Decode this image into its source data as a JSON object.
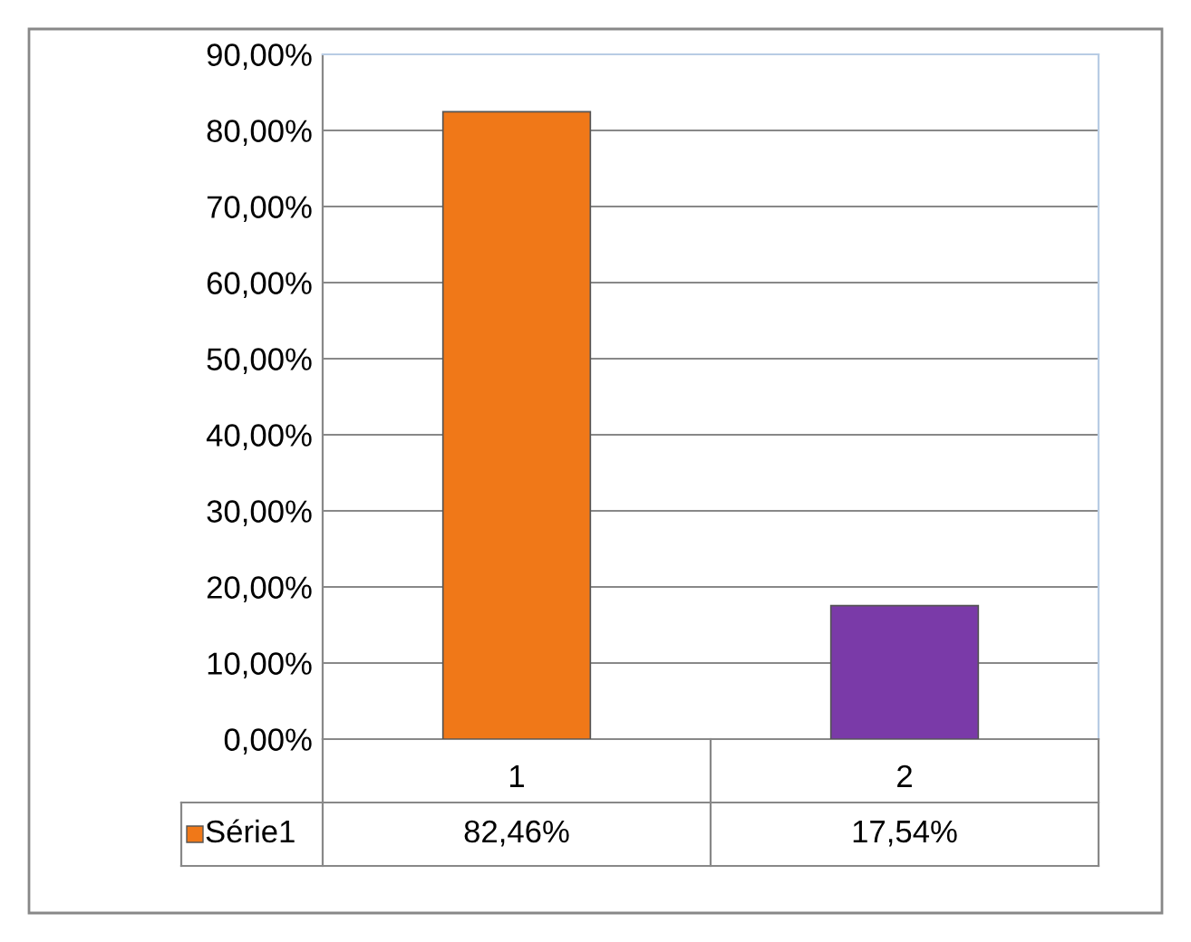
{
  "chart_data": {
    "type": "bar",
    "categories": [
      "1",
      "2"
    ],
    "series": [
      {
        "name": "Série1",
        "color": "#f07818",
        "colors": [
          "#f07818",
          "#7a3aa8"
        ],
        "values": [
          82.46,
          17.54
        ],
        "value_labels": [
          "82,46%",
          "17,54%"
        ]
      }
    ],
    "ylim": [
      0,
      90
    ],
    "yticks": [
      {
        "value": 0,
        "label": "0,00%"
      },
      {
        "value": 10,
        "label": "10,00%"
      },
      {
        "value": 20,
        "label": "20,00%"
      },
      {
        "value": 30,
        "label": "30,00%"
      },
      {
        "value": 40,
        "label": "40,00%"
      },
      {
        "value": 50,
        "label": "50,00%"
      },
      {
        "value": 60,
        "label": "60,00%"
      },
      {
        "value": 70,
        "label": "70,00%"
      },
      {
        "value": 80,
        "label": "80,00%"
      },
      {
        "value": 90,
        "label": "90,00%"
      }
    ],
    "grid": "y",
    "legend": "bottom left"
  }
}
